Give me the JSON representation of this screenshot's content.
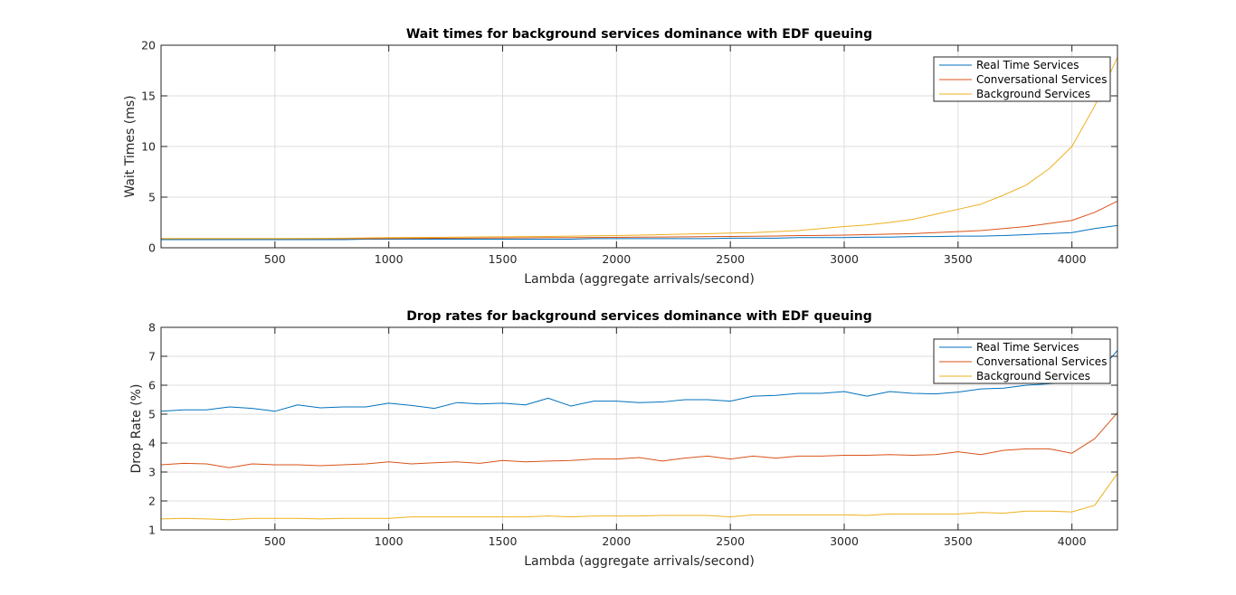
{
  "figure": {
    "background": "#ffffff"
  },
  "chart_data": [
    {
      "type": "line",
      "title": "Wait times for background services dominance with EDF queuing",
      "xlabel": "Lambda (aggregate arrivals/second)",
      "ylabel": "Wait Times (ms)",
      "xlim": [
        0,
        4200
      ],
      "ylim": [
        0,
        20
      ],
      "xticks": [
        500,
        1000,
        1500,
        2000,
        2500,
        3000,
        3500,
        4000
      ],
      "yticks": [
        0,
        5,
        10,
        15,
        20
      ],
      "grid": true,
      "legend_position": "top-right",
      "series": [
        {
          "name": "Real Time Services",
          "color": "#0072BD",
          "x": [
            0,
            100,
            200,
            300,
            400,
            500,
            600,
            700,
            800,
            900,
            1000,
            1100,
            1200,
            1300,
            1400,
            1500,
            1600,
            1700,
            1800,
            1900,
            2000,
            2100,
            2200,
            2300,
            2400,
            2500,
            2600,
            2700,
            2800,
            2900,
            3000,
            3100,
            3200,
            3300,
            3400,
            3500,
            3600,
            3700,
            3800,
            3900,
            4000,
            4100,
            4200
          ],
          "values": [
            0.8,
            0.8,
            0.8,
            0.8,
            0.8,
            0.8,
            0.8,
            0.8,
            0.8,
            0.85,
            0.85,
            0.85,
            0.85,
            0.85,
            0.85,
            0.85,
            0.85,
            0.85,
            0.85,
            0.9,
            0.9,
            0.9,
            0.9,
            0.9,
            0.9,
            0.95,
            0.95,
            0.95,
            1.0,
            1.0,
            1.0,
            1.05,
            1.05,
            1.1,
            1.1,
            1.15,
            1.15,
            1.2,
            1.3,
            1.4,
            1.5,
            1.9,
            2.2
          ]
        },
        {
          "name": "Conversational Services",
          "color": "#D95319",
          "x": [
            0,
            100,
            200,
            300,
            400,
            500,
            600,
            700,
            800,
            900,
            1000,
            1100,
            1200,
            1300,
            1400,
            1500,
            1600,
            1700,
            1800,
            1900,
            2000,
            2100,
            2200,
            2300,
            2400,
            2500,
            2600,
            2700,
            2800,
            2900,
            3000,
            3100,
            3200,
            3300,
            3400,
            3500,
            3600,
            3700,
            3800,
            3900,
            4000,
            4100,
            4200
          ],
          "values": [
            0.9,
            0.9,
            0.9,
            0.9,
            0.9,
            0.9,
            0.9,
            0.9,
            0.9,
            0.9,
            0.92,
            0.93,
            0.94,
            0.95,
            0.96,
            0.97,
            0.98,
            1.0,
            1.0,
            1.02,
            1.03,
            1.05,
            1.06,
            1.08,
            1.1,
            1.12,
            1.14,
            1.16,
            1.2,
            1.22,
            1.25,
            1.3,
            1.35,
            1.4,
            1.5,
            1.6,
            1.7,
            1.9,
            2.1,
            2.4,
            2.7,
            3.5,
            4.6
          ]
        },
        {
          "name": "Background Services",
          "color": "#EDB120",
          "x": [
            0,
            100,
            200,
            300,
            400,
            500,
            600,
            700,
            800,
            900,
            1000,
            1100,
            1200,
            1300,
            1400,
            1500,
            1600,
            1700,
            1800,
            1900,
            2000,
            2100,
            2200,
            2300,
            2400,
            2500,
            2600,
            2700,
            2800,
            2900,
            3000,
            3100,
            3200,
            3300,
            3400,
            3500,
            3600,
            3700,
            3800,
            3900,
            4000,
            4100,
            4200
          ],
          "values": [
            0.9,
            0.9,
            0.9,
            0.9,
            0.9,
            0.9,
            0.92,
            0.93,
            0.95,
            0.97,
            1.0,
            1.02,
            1.03,
            1.05,
            1.07,
            1.08,
            1.1,
            1.12,
            1.15,
            1.18,
            1.2,
            1.25,
            1.3,
            1.35,
            1.4,
            1.45,
            1.5,
            1.6,
            1.7,
            1.9,
            2.1,
            2.25,
            2.5,
            2.8,
            3.3,
            3.8,
            4.3,
            5.2,
            6.2,
            7.8,
            10.0,
            14.0,
            18.8
          ]
        }
      ]
    },
    {
      "type": "line",
      "title": "Drop rates for background services dominance with EDF queuing",
      "xlabel": "Lambda (aggregate arrivals/second)",
      "ylabel": "Drop Rate (%)",
      "xlim": [
        0,
        4200
      ],
      "ylim": [
        1,
        8
      ],
      "xticks": [
        500,
        1000,
        1500,
        2000,
        2500,
        3000,
        3500,
        4000
      ],
      "yticks": [
        1,
        2,
        3,
        4,
        5,
        6,
        7,
        8
      ],
      "grid": true,
      "legend_position": "top-right",
      "series": [
        {
          "name": "Real Time Services",
          "color": "#0072BD",
          "x": [
            0,
            100,
            200,
            300,
            400,
            500,
            600,
            700,
            800,
            900,
            1000,
            1100,
            1200,
            1300,
            1400,
            1500,
            1600,
            1700,
            1800,
            1900,
            2000,
            2100,
            2200,
            2300,
            2400,
            2500,
            2600,
            2700,
            2800,
            2900,
            3000,
            3100,
            3200,
            3300,
            3400,
            3500,
            3600,
            3700,
            3800,
            3900,
            4000,
            4100,
            4200
          ],
          "values": [
            5.1,
            5.15,
            5.15,
            5.25,
            5.2,
            5.1,
            5.32,
            5.22,
            5.25,
            5.25,
            5.38,
            5.3,
            5.2,
            5.4,
            5.35,
            5.38,
            5.32,
            5.55,
            5.28,
            5.45,
            5.45,
            5.4,
            5.42,
            5.5,
            5.5,
            5.45,
            5.62,
            5.65,
            5.72,
            5.72,
            5.78,
            5.62,
            5.78,
            5.72,
            5.7,
            5.76,
            5.87,
            5.9,
            6.0,
            6.05,
            6.1,
            6.3,
            7.2
          ]
        },
        {
          "name": "Conversational Services",
          "color": "#D95319",
          "x": [
            0,
            100,
            200,
            300,
            400,
            500,
            600,
            700,
            800,
            900,
            1000,
            1100,
            1200,
            1300,
            1400,
            1500,
            1600,
            1700,
            1800,
            1900,
            2000,
            2100,
            2200,
            2300,
            2400,
            2500,
            2600,
            2700,
            2800,
            2900,
            3000,
            3100,
            3200,
            3300,
            3400,
            3500,
            3600,
            3700,
            3800,
            3900,
            4000,
            4100,
            4200
          ],
          "values": [
            3.25,
            3.3,
            3.28,
            3.15,
            3.28,
            3.25,
            3.25,
            3.22,
            3.25,
            3.28,
            3.35,
            3.28,
            3.32,
            3.35,
            3.3,
            3.4,
            3.35,
            3.38,
            3.4,
            3.45,
            3.45,
            3.5,
            3.38,
            3.48,
            3.55,
            3.45,
            3.55,
            3.48,
            3.55,
            3.55,
            3.58,
            3.58,
            3.6,
            3.58,
            3.6,
            3.7,
            3.6,
            3.75,
            3.8,
            3.8,
            3.65,
            4.15,
            5.05
          ]
        },
        {
          "name": "Background Services",
          "color": "#EDB120",
          "x": [
            0,
            100,
            200,
            300,
            400,
            500,
            600,
            700,
            800,
            900,
            1000,
            1100,
            1200,
            1300,
            1400,
            1500,
            1600,
            1700,
            1800,
            1900,
            2000,
            2100,
            2200,
            2300,
            2400,
            2500,
            2600,
            2700,
            2800,
            2900,
            3000,
            3100,
            3200,
            3300,
            3400,
            3500,
            3600,
            3700,
            3800,
            3900,
            4000,
            4100,
            4200
          ],
          "values": [
            1.38,
            1.4,
            1.38,
            1.35,
            1.4,
            1.4,
            1.4,
            1.38,
            1.4,
            1.4,
            1.4,
            1.45,
            1.45,
            1.45,
            1.45,
            1.45,
            1.45,
            1.48,
            1.45,
            1.48,
            1.48,
            1.48,
            1.5,
            1.5,
            1.5,
            1.45,
            1.52,
            1.52,
            1.52,
            1.52,
            1.52,
            1.5,
            1.55,
            1.55,
            1.55,
            1.55,
            1.6,
            1.58,
            1.65,
            1.65,
            1.62,
            1.85,
            2.95
          ]
        }
      ]
    }
  ]
}
